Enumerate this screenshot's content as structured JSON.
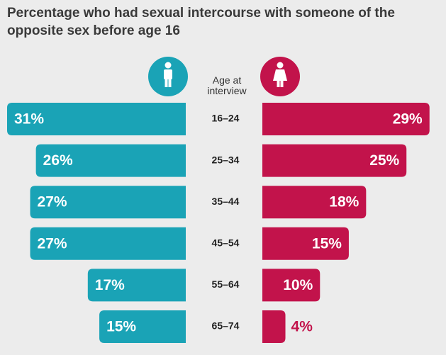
{
  "chart_data": {
    "type": "butterfly-bar",
    "title": "Percentage who had sexual intercourse with someone of the opposite sex before age 16",
    "axis_label": "Age at interview",
    "categories": [
      "16–24",
      "25–34",
      "35–44",
      "45–54",
      "55–64",
      "65–74"
    ],
    "series": [
      {
        "name": "Men",
        "color": "#1aa3b6",
        "values": [
          31,
          26,
          27,
          27,
          17,
          15
        ],
        "value_labels": [
          "31%",
          "26%",
          "27%",
          "27%",
          "17%",
          "15%"
        ]
      },
      {
        "name": "Women",
        "color": "#c2134b",
        "values": [
          29,
          25,
          18,
          15,
          10,
          4
        ],
        "value_labels": [
          "29%",
          "25%",
          "18%",
          "15%",
          "10%",
          "4%"
        ]
      }
    ]
  }
}
